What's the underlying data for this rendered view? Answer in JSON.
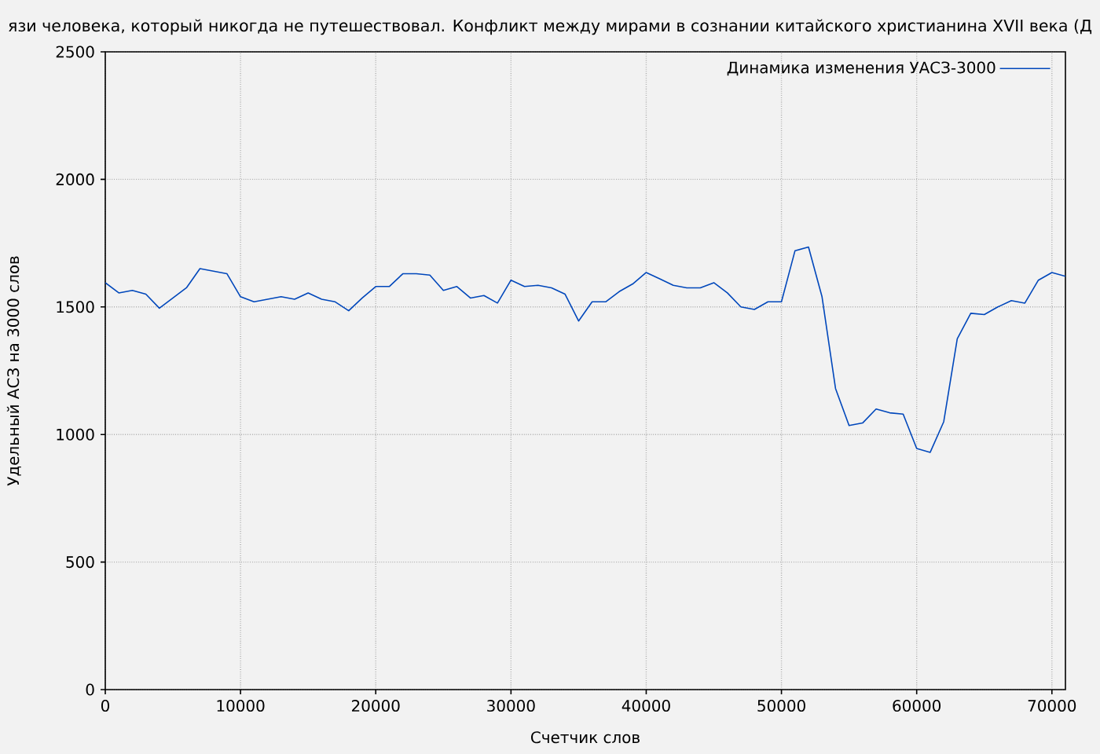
{
  "chart_data": {
    "type": "line",
    "title": "язи человека, который никогда не путешествовал. Конфликт между мирами в сознании китайского христианина XVII века (Д",
    "xlabel": "Счетчик слов",
    "ylabel": "Удельный АСЗ на 3000 слов",
    "x": [
      0,
      1000,
      2000,
      3000,
      4000,
      5000,
      6000,
      7000,
      8000,
      9000,
      10000,
      11000,
      12000,
      13000,
      14000,
      15000,
      16000,
      17000,
      18000,
      19000,
      20000,
      21000,
      22000,
      23000,
      24000,
      25000,
      26000,
      27000,
      28000,
      29000,
      30000,
      31000,
      32000,
      33000,
      34000,
      35000,
      36000,
      37000,
      38000,
      39000,
      40000,
      41000,
      42000,
      43000,
      44000,
      45000,
      46000,
      47000,
      48000,
      49000,
      50000,
      51000,
      52000,
      53000,
      54000,
      55000,
      56000,
      57000,
      58000,
      59000,
      60000,
      61000,
      62000,
      63000,
      64000,
      65000,
      66000,
      67000,
      68000,
      69000,
      70000,
      71000
    ],
    "series": [
      {
        "name": "Динамика изменения УАСЗ-3000",
        "color": "#0047bb",
        "values": [
          1595,
          1555,
          1565,
          1550,
          1495,
          1535,
          1575,
          1650,
          1640,
          1630,
          1540,
          1520,
          1530,
          1540,
          1530,
          1555,
          1530,
          1520,
          1485,
          1535,
          1580,
          1580,
          1630,
          1630,
          1625,
          1565,
          1580,
          1535,
          1545,
          1515,
          1605,
          1580,
          1585,
          1575,
          1550,
          1445,
          1520,
          1520,
          1560,
          1590,
          1635,
          1610,
          1585,
          1575,
          1575,
          1595,
          1555,
          1500,
          1490,
          1520,
          1520,
          1720,
          1735,
          1540,
          1180,
          1035,
          1045,
          1100,
          1085,
          1080,
          945,
          930,
          1050,
          1375,
          1475,
          1470,
          1500,
          1525,
          1515,
          1605,
          1635,
          1620
        ]
      }
    ],
    "xlim": [
      0,
      71000
    ],
    "ylim": [
      0,
      2500
    ],
    "xticks": [
      0,
      10000,
      20000,
      30000,
      40000,
      50000,
      60000,
      70000
    ],
    "yticks": [
      0,
      500,
      1000,
      1500,
      2000,
      2500
    ],
    "grid": true,
    "legend": "top right"
  }
}
